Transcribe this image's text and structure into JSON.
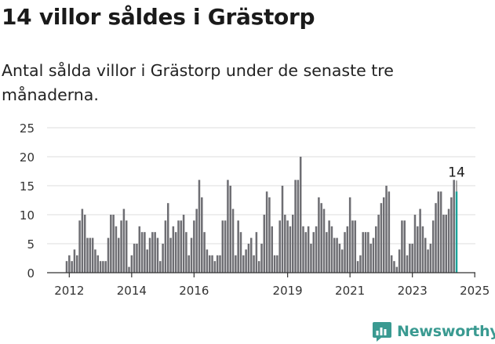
{
  "header": {
    "title": "14 villor såldes i Grästorp",
    "subtitle": "Antal sålda villor i Grästorp under de senaste tre månaderna."
  },
  "brand": {
    "name": "Newsworthy",
    "color": "#3a9a91"
  },
  "colors": {
    "bar": "#6e6e73",
    "highlight": "#1aa39a",
    "axis": "#333333",
    "grid": "#dddddd"
  },
  "chart_data": {
    "type": "bar",
    "title": "",
    "xlabel": "",
    "ylabel": "",
    "ylim": [
      0,
      25
    ],
    "y_ticks": [
      0,
      5,
      10,
      15,
      20,
      25
    ],
    "x_tick_labels": [
      "2012",
      "2014",
      "2016",
      "2019",
      "2021",
      "2023",
      "2025"
    ],
    "x_tick_positions": [
      "2012-01",
      "2014-01",
      "2016-01",
      "2019-01",
      "2021-01",
      "2023-01",
      "2025-01"
    ],
    "grid": "horizontal",
    "start_month": "2011-12",
    "end_month": "2025-01",
    "value_label": "14",
    "values": [
      2,
      3,
      2,
      4,
      3,
      9,
      11,
      10,
      6,
      6,
      6,
      4,
      3,
      2,
      2,
      2,
      6,
      10,
      10,
      8,
      6,
      9,
      11,
      9,
      1,
      3,
      5,
      5,
      8,
      7,
      7,
      4,
      6,
      7,
      7,
      6,
      2,
      5,
      9,
      12,
      6,
      8,
      7,
      9,
      9,
      10,
      7,
      3,
      6,
      9,
      11,
      16,
      13,
      7,
      4,
      3,
      3,
      2,
      3,
      3,
      9,
      9,
      16,
      15,
      11,
      3,
      9,
      7,
      3,
      4,
      5,
      6,
      3,
      7,
      2,
      5,
      10,
      14,
      13,
      8,
      3,
      3,
      9,
      15,
      10,
      9,
      8,
      10,
      16,
      16,
      20,
      8,
      7,
      8,
      5,
      7,
      8,
      13,
      12,
      11,
      7,
      9,
      8,
      6,
      6,
      5,
      4,
      7,
      8,
      13,
      9,
      9,
      2,
      3,
      7,
      7,
      7,
      5,
      6,
      8,
      10,
      12,
      13,
      15,
      14,
      3,
      2,
      1,
      4,
      9,
      9,
      3,
      5,
      5,
      10,
      8,
      11,
      8,
      6,
      4,
      5,
      9,
      12,
      14,
      14,
      10,
      10,
      11,
      13,
      16,
      14
    ],
    "highlight_last": true
  }
}
